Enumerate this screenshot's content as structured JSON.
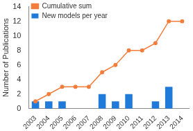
{
  "chart_data": {
    "type": "bar",
    "y_label": "Number of Publications",
    "categories": [
      "2003",
      "2004",
      "2005",
      "2006",
      "2007",
      "2008",
      "2009",
      "2010",
      "2011",
      "2012",
      "2013",
      "2014"
    ],
    "series": [
      {
        "name": "New models per year",
        "type": "bar",
        "color": "#1f7ad9",
        "values": [
          1,
          1,
          1,
          0,
          0,
          2,
          1,
          2,
          0,
          1,
          3,
          0
        ]
      },
      {
        "name": "Cumulative sum",
        "type": "line",
        "color": "#f47d3b",
        "marker": "circle",
        "values": [
          1,
          2,
          3,
          3,
          3,
          5,
          6,
          8,
          8,
          9,
          12,
          12
        ]
      }
    ],
    "ylim": [
      0,
      14
    ],
    "yticks": [
      0,
      2,
      4,
      6,
      8,
      10,
      12,
      14
    ],
    "grid": false,
    "legend": "upper left"
  }
}
